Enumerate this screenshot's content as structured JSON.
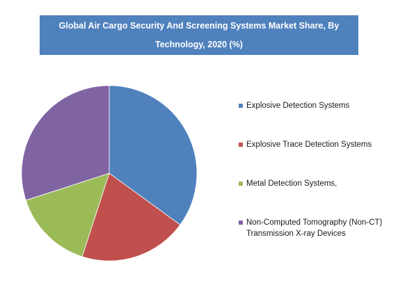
{
  "chart_data": {
    "type": "pie",
    "title": "Global Air Cargo Security And Screening Systems Market  Share, By Technology, 2020 (%)",
    "categories": [
      "Explosive Detection Systems",
      "Explosive Trace Detection Systems",
      "Metal Detection Systems,",
      "Non-Computed Tomography (Non-CT) Transmission X-ray Devices"
    ],
    "values": [
      35,
      20,
      15,
      30
    ],
    "colors": [
      "#4f81bd",
      "#c0504d",
      "#9bbb59",
      "#8064a2"
    ],
    "legend_position": "right"
  },
  "legend": [
    {
      "label": "Explosive Detection Systems",
      "color": "#4f81bd"
    },
    {
      "label": "Explosive Trace Detection Systems",
      "color": "#c0504d"
    },
    {
      "label": "Metal Detection Systems,",
      "color": "#9bbb59"
    },
    {
      "label": "Non-Computed Tomography (Non-CT)\nTransmission X-ray Devices",
      "color": "#8064a2"
    }
  ]
}
